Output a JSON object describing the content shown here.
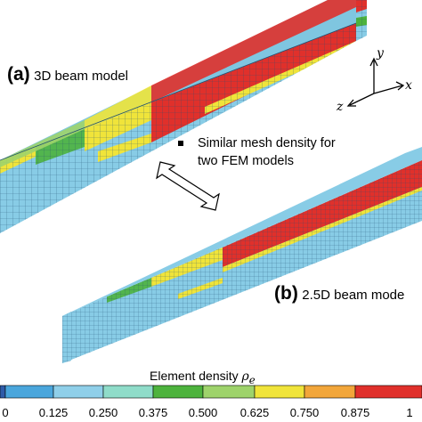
{
  "panel_a": {
    "letter": "(a)",
    "text": "3D beam model"
  },
  "panel_b": {
    "letter": "(b)",
    "text": "2.5D beam mode"
  },
  "note": {
    "line1": "Similar mesh density for",
    "line2": "two FEM models"
  },
  "axes": {
    "y": "y",
    "x": "x",
    "z": "z"
  },
  "colorbar": {
    "title": "Element density",
    "symbol": "ρ",
    "subscript": "e",
    "ticks": [
      "0",
      "0.125",
      "0.250",
      "0.375",
      "0.500",
      "0.625",
      "0.750",
      "0.875",
      "1"
    ],
    "colors": [
      "#2f5ba8",
      "#4aa6dc",
      "#8fcfe9",
      "#8fdcc9",
      "#4db33d",
      "#9ed36b",
      "#f0e43a",
      "#f2a63a",
      "#e0302b"
    ]
  },
  "colors": {
    "mesh_base": "#88cce6",
    "mesh_line": "#1f4f70",
    "yellow": "#f0e43a",
    "green": "#4db33d",
    "red": "#e0302b"
  }
}
